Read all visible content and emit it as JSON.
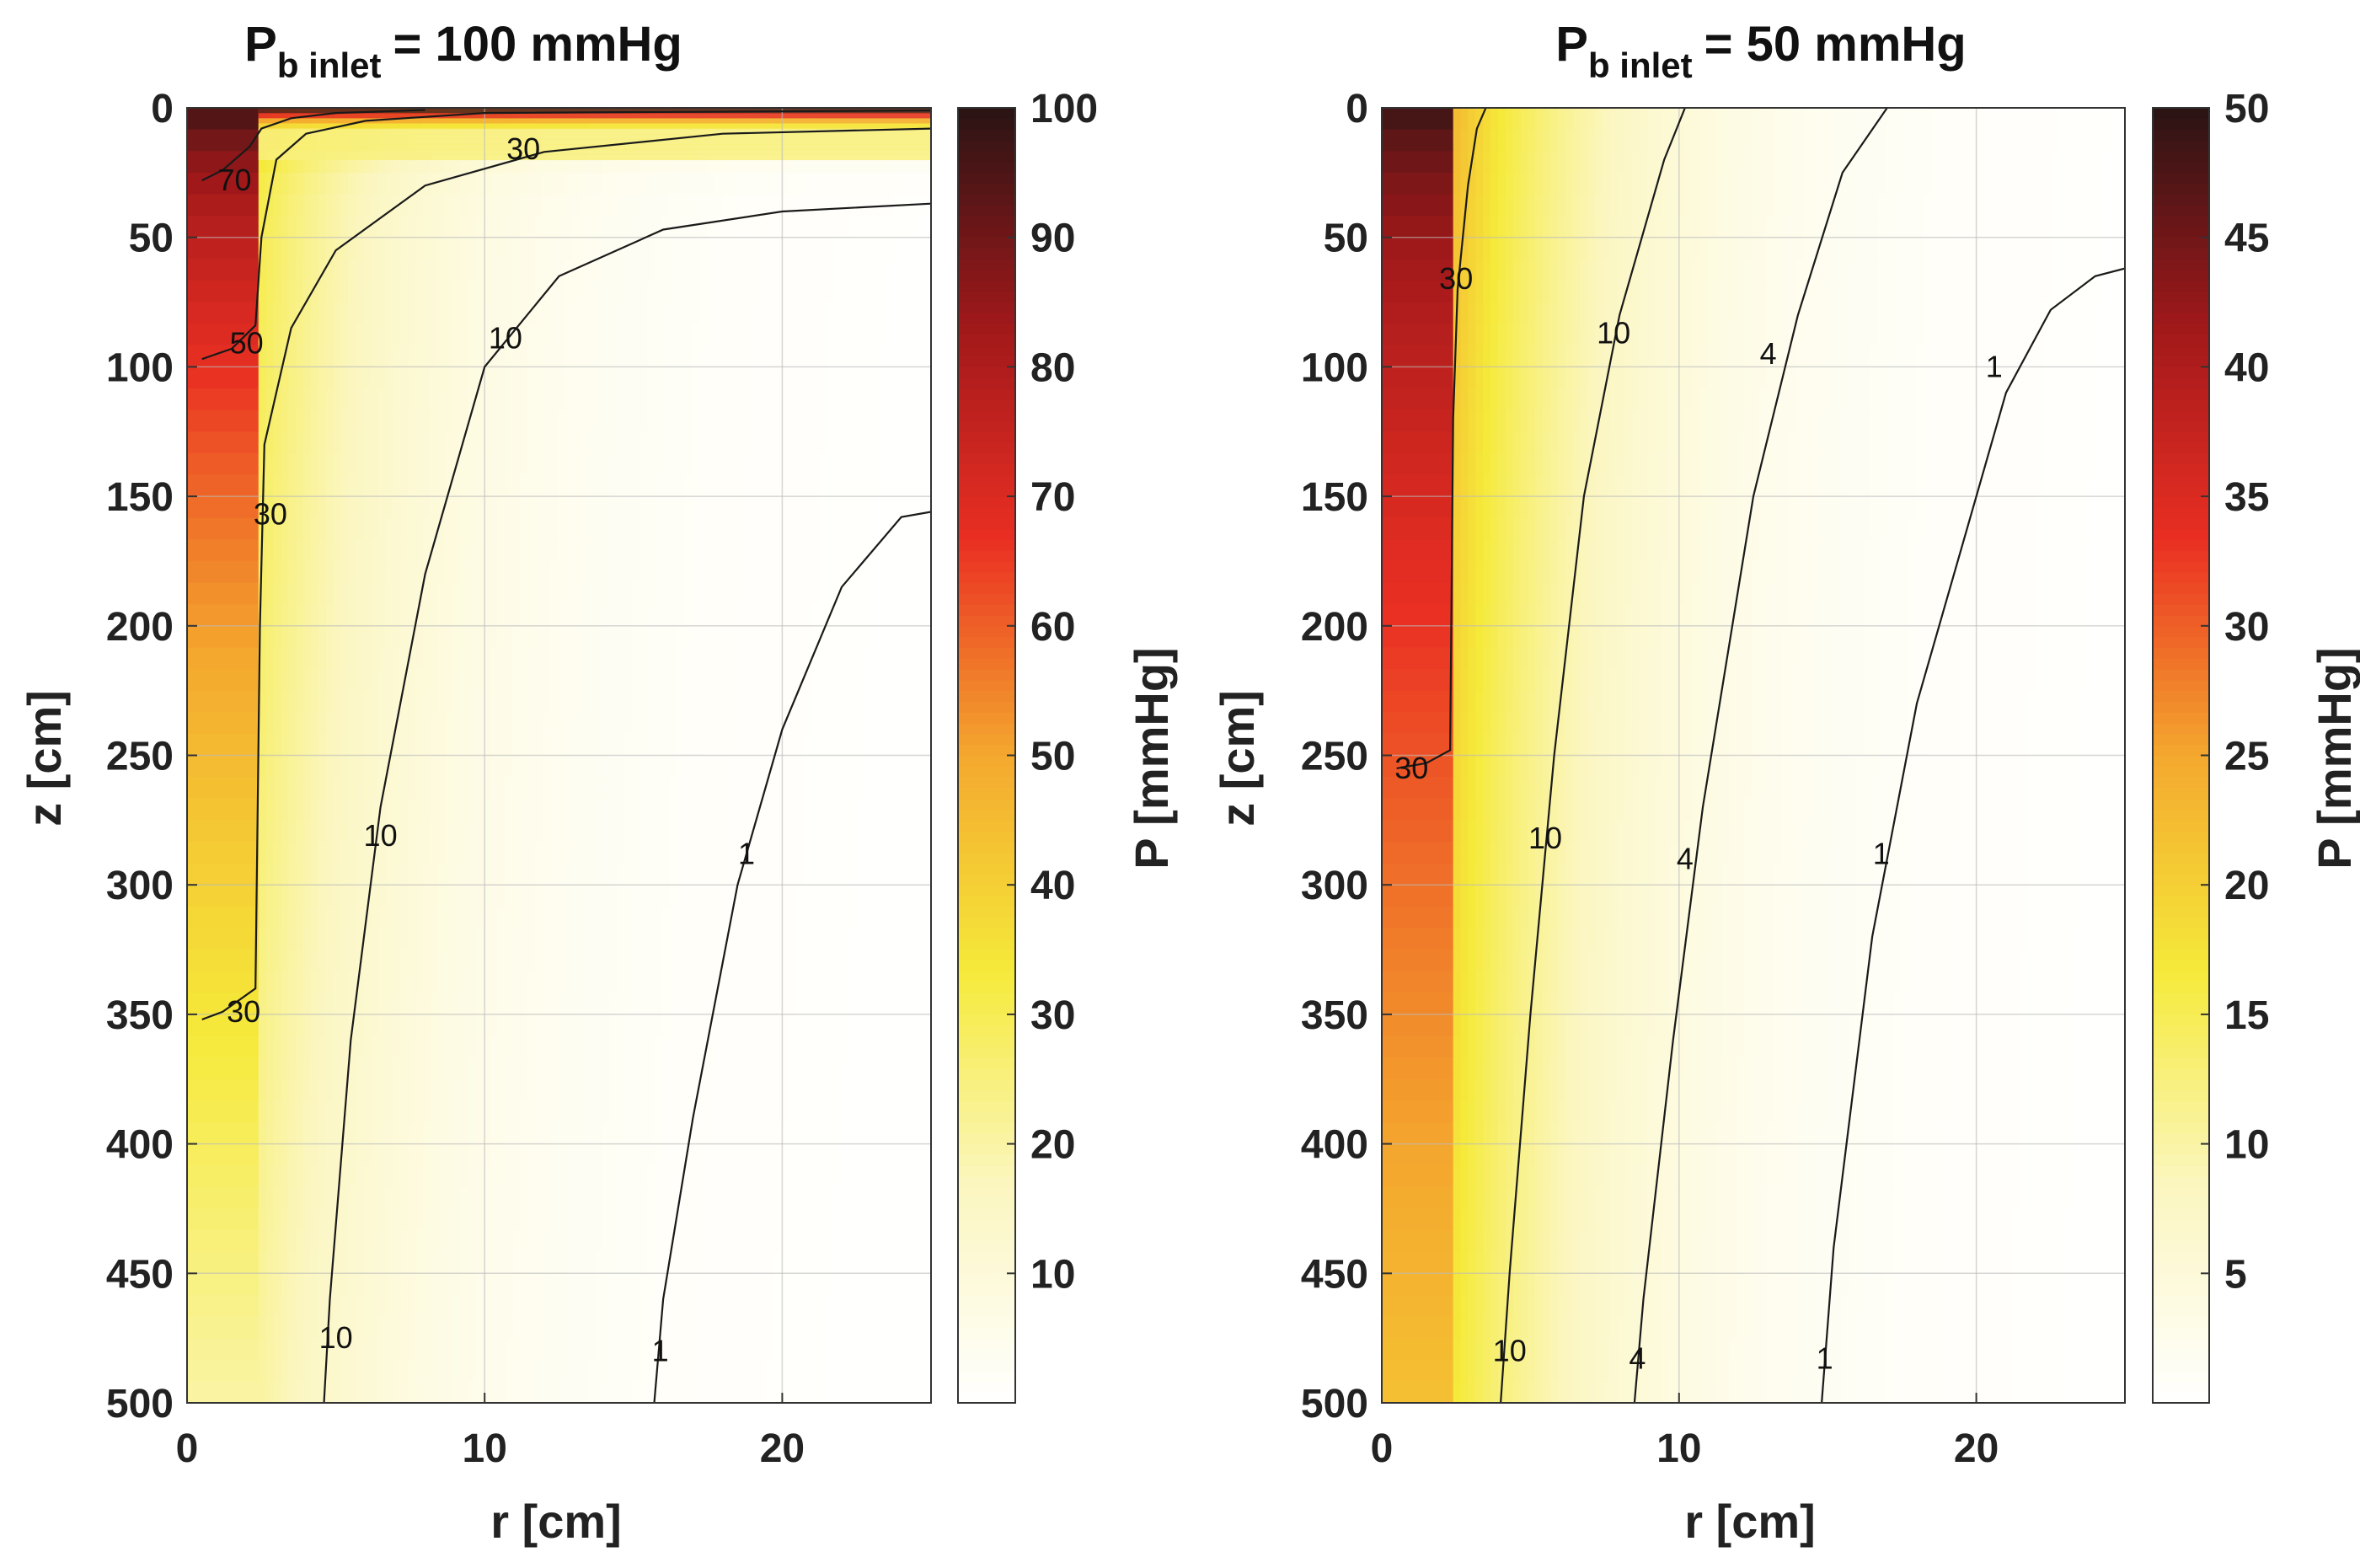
{
  "chart_data": [
    {
      "type": "heatmap",
      "title_main": "P",
      "title_sub": "b inlet",
      "title_rest": "= 100 mmHg",
      "xlabel": "r [cm]",
      "ylabel": "z [cm]",
      "xlim": [
        0,
        25
      ],
      "ylim": [
        0,
        500
      ],
      "y_reversed": true,
      "xticks": [
        "0",
        "10",
        "20"
      ],
      "yticks": [
        "0",
        "50",
        "100",
        "150",
        "200",
        "250",
        "300",
        "350",
        "400",
        "450",
        "500"
      ],
      "colorbar": {
        "label": "P [mmHg]",
        "range": [
          0,
          100
        ],
        "ticks": [
          "10",
          "20",
          "30",
          "40",
          "50",
          "60",
          "70",
          "80",
          "90",
          "100"
        ]
      },
      "colormap": [
        "#ffffff",
        "#fbf6c0",
        "#f5ea3a",
        "#f4a82e",
        "#ea2f23",
        "#a0181a",
        "#2a1414"
      ],
      "vessel": {
        "radius_cm": 2.4,
        "p_inlet": 100,
        "p_outlet": 20
      },
      "tissue_field": {
        "p_edge": 32,
        "r_decay_cm": 5.5
      },
      "contours": [
        {
          "level": "70",
          "points": [
            [
              0.5,
              28
            ],
            [
              1.2,
              24
            ],
            [
              2.1,
              15
            ],
            [
              2.5,
              8
            ],
            [
              3.5,
              4
            ],
            [
              5,
              2
            ],
            [
              8,
              0.8
            ]
          ],
          "labels": [
            {
              "text": "70",
              "r": 1.6,
              "z": 28
            }
          ]
        },
        {
          "level": "50",
          "points": [
            [
              0.5,
              97
            ],
            [
              1.5,
              93
            ],
            [
              2.3,
              84
            ],
            [
              2.5,
              50
            ],
            [
              3,
              20
            ],
            [
              4,
              10
            ],
            [
              6,
              5
            ],
            [
              10,
              2
            ],
            [
              25,
              1
            ]
          ],
          "labels": [
            {
              "text": "50",
              "r": 2.0,
              "z": 91
            }
          ]
        },
        {
          "level": "30",
          "points": [
            [
              0.5,
              352
            ],
            [
              1.2,
              349
            ],
            [
              2.3,
              340
            ],
            [
              2.45,
              200
            ],
            [
              2.6,
              130
            ],
            [
              3.5,
              85
            ],
            [
              5,
              55
            ],
            [
              8,
              30
            ],
            [
              12,
              17
            ],
            [
              18,
              10
            ],
            [
              25,
              8
            ]
          ],
          "labels": [
            {
              "text": "30",
              "r": 1.9,
              "z": 349
            },
            {
              "text": "30",
              "r": 2.8,
              "z": 157
            },
            {
              "text": "30",
              "r": 11.3,
              "z": 16
            }
          ]
        },
        {
          "level": "10",
          "points": [
            [
              4.6,
              500
            ],
            [
              4.8,
              460
            ],
            [
              5.5,
              360
            ],
            [
              6.5,
              270
            ],
            [
              8,
              180
            ],
            [
              10,
              100
            ],
            [
              12.5,
              65
            ],
            [
              16,
              47
            ],
            [
              20,
              40
            ],
            [
              25,
              37
            ]
          ],
          "labels": [
            {
              "text": "10",
              "r": 5.0,
              "z": 475
            },
            {
              "text": "10",
              "r": 6.5,
              "z": 281
            },
            {
              "text": "10",
              "r": 10.7,
              "z": 89
            }
          ]
        },
        {
          "level": "1",
          "points": [
            [
              15.7,
              500
            ],
            [
              16,
              460
            ],
            [
              17,
              390
            ],
            [
              18.5,
              300
            ],
            [
              20,
              240
            ],
            [
              22,
              185
            ],
            [
              24,
              158
            ],
            [
              25,
              156
            ]
          ],
          "labels": [
            {
              "text": "1",
              "r": 15.9,
              "z": 480
            },
            {
              "text": "1",
              "r": 18.8,
              "z": 288
            }
          ]
        }
      ]
    },
    {
      "type": "heatmap",
      "title_main": "P",
      "title_sub": "b inlet",
      "title_rest": "= 50 mmHg",
      "xlabel": "r [cm]",
      "ylabel": "z [cm]",
      "xlim": [
        0,
        25
      ],
      "ylim": [
        0,
        500
      ],
      "y_reversed": true,
      "xticks": [
        "0",
        "10",
        "20"
      ],
      "yticks": [
        "0",
        "50",
        "100",
        "150",
        "200",
        "250",
        "300",
        "350",
        "400",
        "450",
        "500"
      ],
      "colorbar": {
        "label": "P [mmHg]",
        "range": [
          0,
          50
        ],
        "ticks": [
          "5",
          "10",
          "15",
          "20",
          "25",
          "30",
          "35",
          "40",
          "45",
          "50"
        ]
      },
      "colormap": [
        "#ffffff",
        "#fbf6c0",
        "#f5ea3a",
        "#f4a82e",
        "#ea2f23",
        "#a0181a",
        "#2a1414"
      ],
      "vessel": {
        "radius_cm": 2.4,
        "p_inlet": 50,
        "p_outlet": 22
      },
      "tissue_field": {
        "p_edge": 20,
        "r_decay_cm": 5.2
      },
      "contours": [
        {
          "level": "30",
          "points": [
            [
              0.5,
              255
            ],
            [
              1.5,
              253
            ],
            [
              2.3,
              248
            ],
            [
              2.4,
              120
            ],
            [
              2.55,
              70
            ],
            [
              2.9,
              30
            ],
            [
              3.2,
              8
            ],
            [
              3.5,
              0
            ]
          ],
          "labels": [
            {
              "text": "30",
              "r": 2.5,
              "z": 66
            },
            {
              "text": "30",
              "r": 1.0,
              "z": 255
            }
          ]
        },
        {
          "level": "10",
          "points": [
            [
              4.0,
              500
            ],
            [
              4.3,
              450
            ],
            [
              5.0,
              350
            ],
            [
              5.8,
              250
            ],
            [
              6.8,
              150
            ],
            [
              8,
              80
            ],
            [
              9.5,
              20
            ],
            [
              10.2,
              0
            ]
          ],
          "labels": [
            {
              "text": "10",
              "r": 7.8,
              "z": 87
            },
            {
              "text": "10",
              "r": 5.5,
              "z": 282
            },
            {
              "text": "10",
              "r": 4.3,
              "z": 480
            }
          ]
        },
        {
          "level": "4",
          "points": [
            [
              8.5,
              500
            ],
            [
              8.8,
              460
            ],
            [
              9.8,
              360
            ],
            [
              10.8,
              270
            ],
            [
              12.5,
              150
            ],
            [
              14,
              80
            ],
            [
              15.5,
              25
            ],
            [
              17,
              0
            ]
          ],
          "labels": [
            {
              "text": "4",
              "r": 13.0,
              "z": 95
            },
            {
              "text": "4",
              "r": 10.2,
              "z": 290
            },
            {
              "text": "4",
              "r": 8.6,
              "z": 483
            }
          ]
        },
        {
          "level": "1",
          "points": [
            [
              14.8,
              500
            ],
            [
              15.2,
              440
            ],
            [
              16.5,
              320
            ],
            [
              18,
              230
            ],
            [
              19.5,
              170
            ],
            [
              21,
              110
            ],
            [
              22.5,
              78
            ],
            [
              24,
              65
            ],
            [
              25,
              62
            ]
          ],
          "labels": [
            {
              "text": "1",
              "r": 20.6,
              "z": 100
            },
            {
              "text": "1",
              "r": 16.8,
              "z": 288
            },
            {
              "text": "1",
              "r": 14.9,
              "z": 483
            }
          ]
        }
      ]
    }
  ]
}
